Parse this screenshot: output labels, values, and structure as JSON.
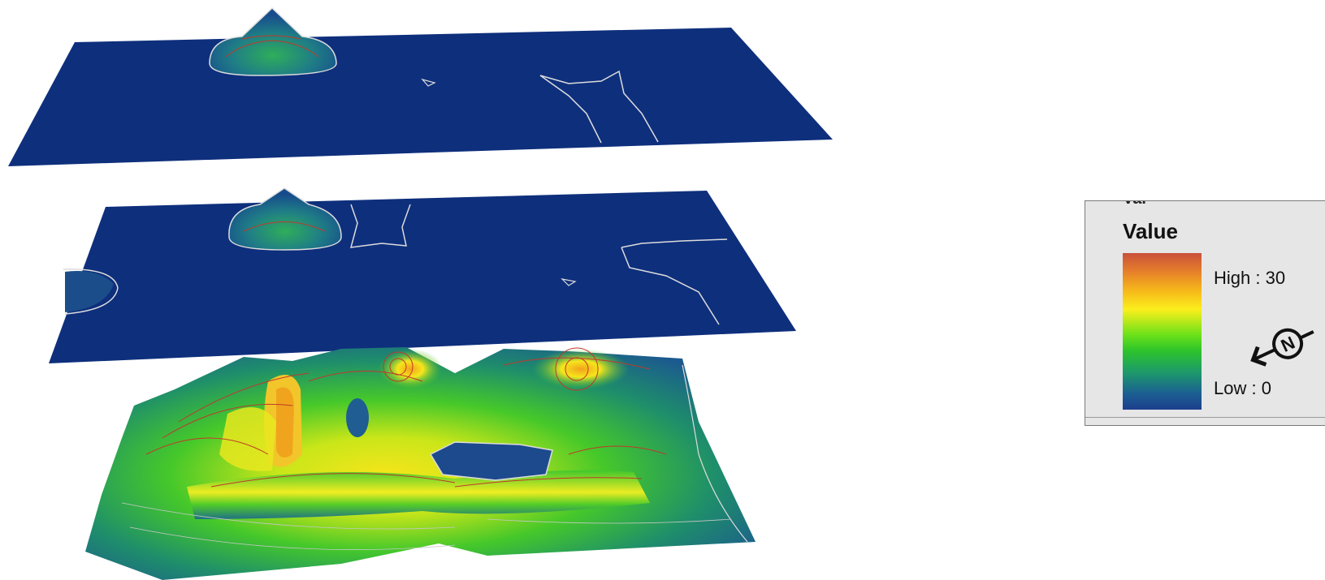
{
  "legend": {
    "cut_title": "Val",
    "title": "Value",
    "high_label": "High : 30",
    "low_label": "Low : 0",
    "ramp_colors": [
      "#c8503a",
      "#e6802a",
      "#f6b81a",
      "#fbef1c",
      "#6ee21a",
      "#2ec52a",
      "#1d9a6a",
      "#1b5e93",
      "#1c3f8c"
    ]
  },
  "map": {
    "layers": 3,
    "base_color": "#0d2f7a",
    "contour_color_major": "#c0392b",
    "contour_color_minor": "#e8e8e8"
  },
  "north_arrow": {
    "icon": "north-arrow-icon",
    "letter": "N"
  }
}
